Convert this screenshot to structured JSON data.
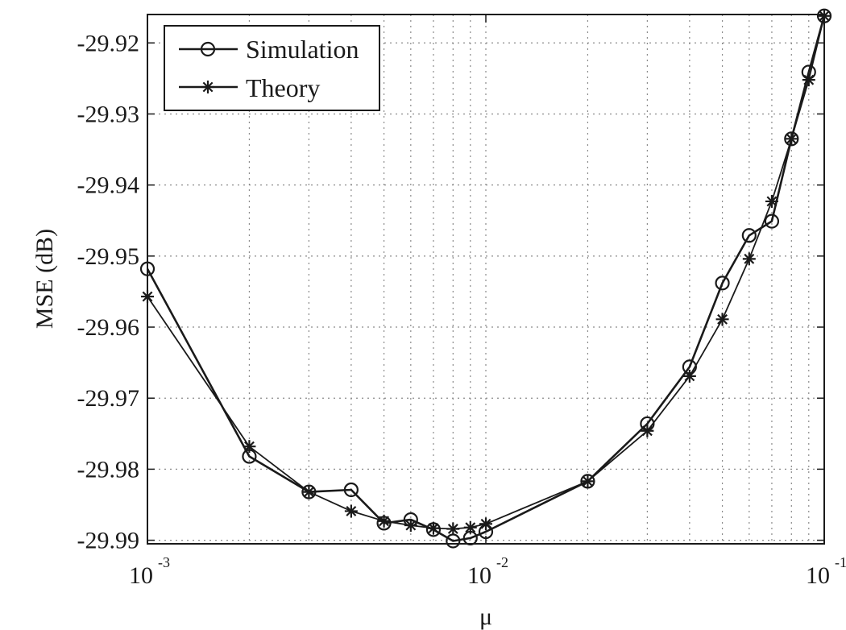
{
  "chart_data": {
    "type": "line",
    "xscale": "log",
    "xlim": [
      0.001,
      0.1
    ],
    "ylim": [
      -29.9905,
      -29.916
    ],
    "xlabel": "μ",
    "ylabel": "MSE (dB)",
    "xticks": [
      {
        "base": "10",
        "exp": "-3"
      },
      {
        "base": "10",
        "exp": "-2"
      },
      {
        "base": "10",
        "exp": "-1"
      }
    ],
    "yticks": [
      "-29.92",
      "-29.93",
      "-29.94",
      "-29.95",
      "-29.96",
      "-29.97",
      "-29.98",
      "-29.99"
    ],
    "grid": true,
    "legend_position": "top-left",
    "series": [
      {
        "name": "Simulation",
        "marker": "circle",
        "x": [
          0.001,
          0.002,
          0.003,
          0.004,
          0.005,
          0.006,
          0.007,
          0.008,
          0.009,
          0.01,
          0.02,
          0.03,
          0.04,
          0.05,
          0.06,
          0.07,
          0.08,
          0.09,
          0.1
        ],
        "y": [
          -29.9518,
          -29.9782,
          -29.9832,
          -29.9829,
          -29.9876,
          -29.9871,
          -29.9885,
          -29.9901,
          -29.9897,
          -29.9888,
          -29.9817,
          -29.9736,
          -29.9656,
          -29.9538,
          -29.9471,
          -29.9451,
          -29.9335,
          -29.9241,
          -29.9162
        ]
      },
      {
        "name": "Theory",
        "marker": "star",
        "x": [
          0.001,
          0.002,
          0.003,
          0.004,
          0.005,
          0.006,
          0.007,
          0.008,
          0.009,
          0.01,
          0.02,
          0.03,
          0.04,
          0.05,
          0.06,
          0.07,
          0.08,
          0.09,
          0.1
        ],
        "y": [
          -29.9557,
          -29.9768,
          -29.9832,
          -29.9859,
          -29.9873,
          -29.9879,
          -29.9883,
          -29.9884,
          -29.9882,
          -29.9877,
          -29.9817,
          -29.9746,
          -29.9669,
          -29.9589,
          -29.9504,
          -29.9423,
          -29.9335,
          -29.9252,
          -29.9162
        ]
      }
    ],
    "colors": {
      "line": "#1a1a1a",
      "grid": "#8a8a8a",
      "background": "#ffffff"
    }
  }
}
